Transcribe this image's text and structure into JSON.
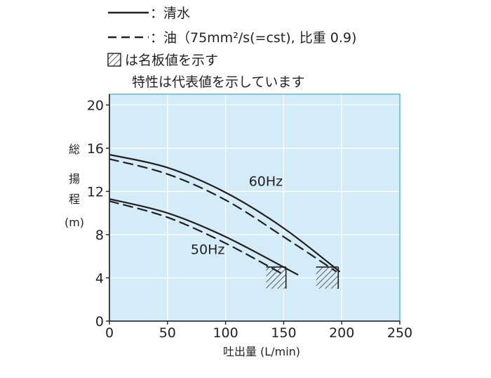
{
  "legend": {
    "solid_label": "：清水",
    "dashed_label": "：油（75mm²/s(=cst), 比重 0.9)",
    "hatch_label": "は名板値を示す",
    "note": "特性は代表値を示しています"
  },
  "chart_data": {
    "type": "line",
    "title": "",
    "xlabel": "吐出量 (L/min)",
    "ylabel": [
      "総",
      "揚",
      "程",
      "(m)"
    ],
    "xlim": [
      0,
      250
    ],
    "ylim": [
      0,
      21
    ],
    "x_ticks": [
      0,
      50,
      100,
      150,
      200,
      250
    ],
    "y_ticks": [
      0,
      4,
      8,
      12,
      16,
      20
    ],
    "x_tick_labels": [
      "0",
      "50",
      "100",
      "150",
      "200",
      "250"
    ],
    "y_tick_labels": [
      "0",
      "4",
      "8",
      "12",
      "16",
      "20"
    ],
    "grid": true,
    "background": "#d4ecf7",
    "line_color": "#231f20",
    "series": [
      {
        "name": "60Hz",
        "style": "solid",
        "fluid": "清水",
        "x": [
          0,
          50,
          100,
          150,
          198
        ],
        "y": [
          15.4,
          14.2,
          11.9,
          8.6,
          4.6
        ]
      },
      {
        "name": "60Hz",
        "style": "dashed",
        "fluid": "油",
        "x": [
          0,
          50,
          100,
          150,
          195
        ],
        "y": [
          15.0,
          13.6,
          11.2,
          7.8,
          4.6
        ]
      },
      {
        "name": "50Hz",
        "style": "solid",
        "fluid": "清水",
        "x": [
          0,
          50,
          100,
          162
        ],
        "y": [
          11.3,
          10.0,
          7.8,
          4.3
        ]
      },
      {
        "name": "50Hz",
        "style": "dashed",
        "fluid": "油",
        "x": [
          0,
          50,
          100,
          150
        ],
        "y": [
          11.1,
          9.6,
          7.2,
          4.3
        ]
      }
    ],
    "series_labels": [
      {
        "text": "60Hz",
        "x": 120,
        "y": 12.5
      },
      {
        "text": "50Hz",
        "x": 70,
        "y": 6.2
      }
    ],
    "rated_regions": [
      {
        "label": "50Hz",
        "x": [
          135,
          152
        ],
        "y": [
          3.0,
          5.0
        ]
      },
      {
        "label": "60Hz",
        "x": [
          178,
          197
        ],
        "y": [
          3.0,
          5.0
        ]
      }
    ]
  }
}
